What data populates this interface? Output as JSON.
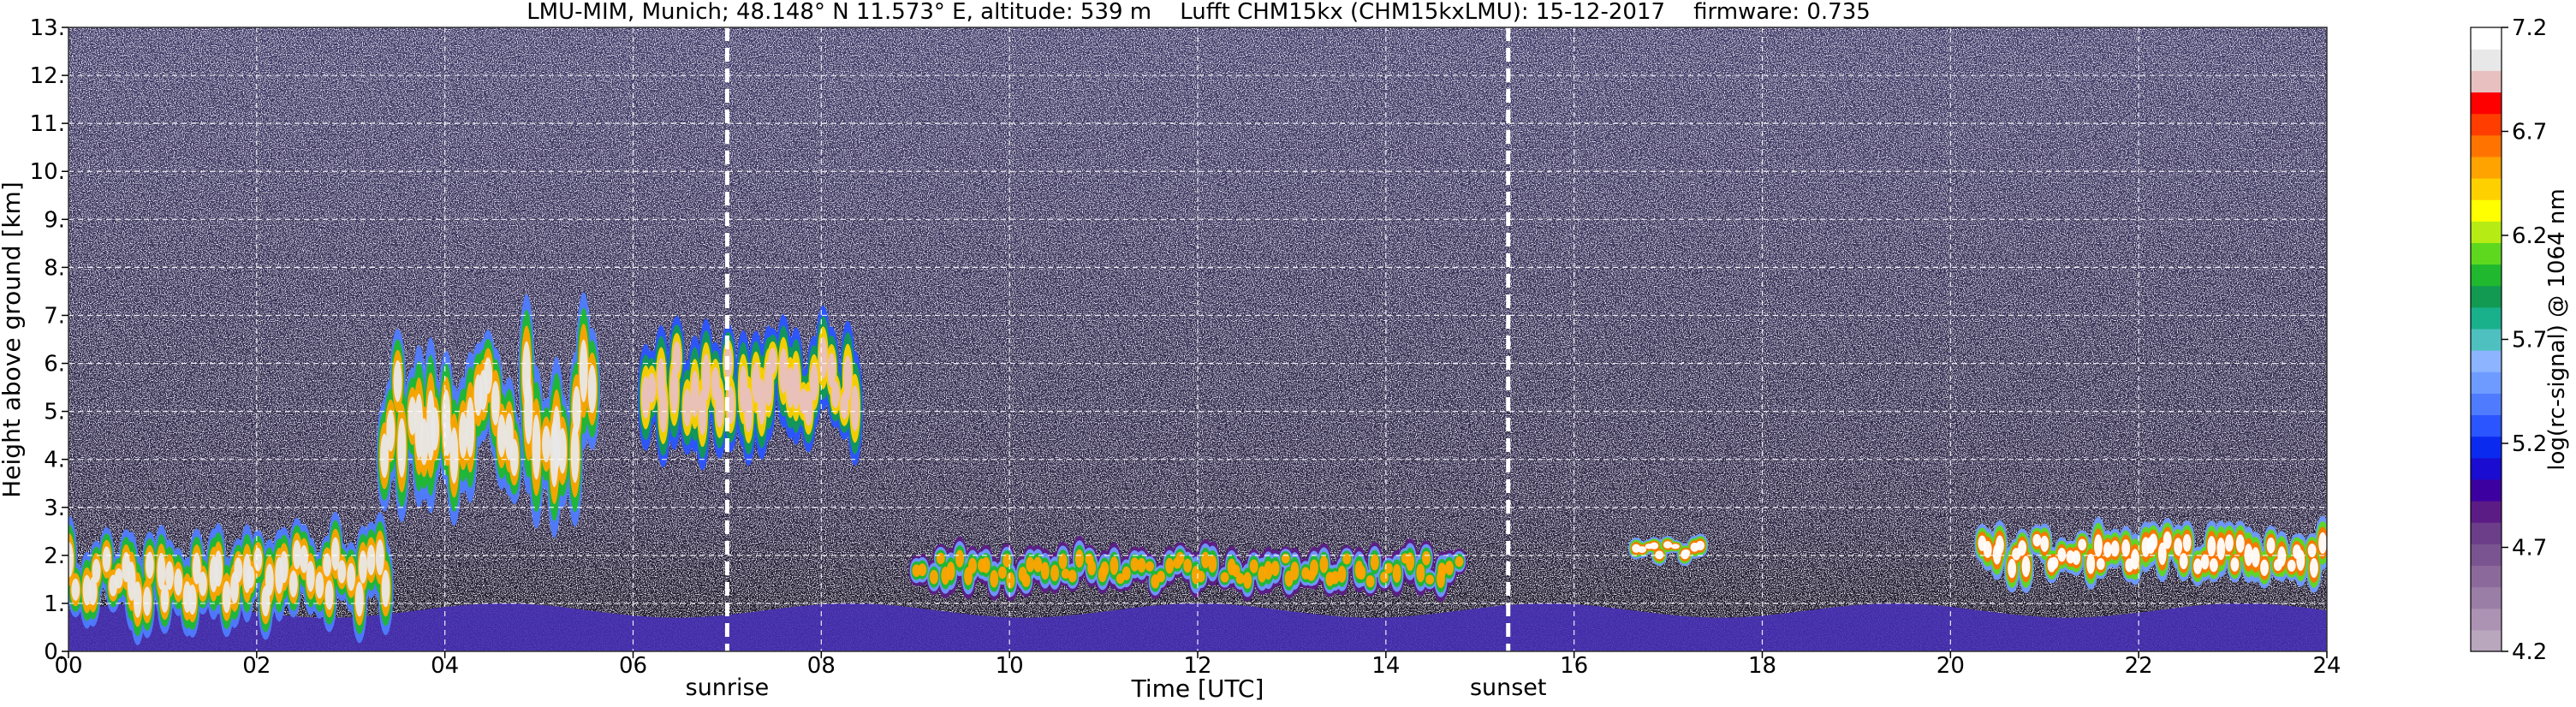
{
  "chart_data": {
    "type": "heatmap",
    "title": "LMU-MIM, Munich; 48.148° N 11.573° E, altitude: 539 m    Lufft CHM15kx (CHM15kxLMU): 15-12-2017    firmware: 0.735",
    "xlabel": "Time [UTC]",
    "ylabel": "Height above ground [km]",
    "xlim": [
      0,
      24
    ],
    "ylim": [
      0,
      13
    ],
    "x_ticks": [
      0,
      2,
      4,
      6,
      8,
      10,
      12,
      14,
      16,
      18,
      20,
      22,
      24
    ],
    "x_tick_labels": [
      "00",
      "02",
      "04",
      "06",
      "08",
      "10",
      "12",
      "14",
      "16",
      "18",
      "20",
      "22",
      "24"
    ],
    "y_ticks": [
      0,
      1,
      2,
      3,
      4,
      5,
      6,
      7,
      8,
      9,
      10,
      11,
      12,
      13
    ],
    "y_tick_labels": [
      "0.",
      "1.",
      "2.",
      "3.",
      "4.",
      "5.",
      "6.",
      "7.",
      "8.",
      "9.",
      "10.",
      "11.",
      "12.",
      "13."
    ],
    "grid": true,
    "colorbar": {
      "label": "log(rc-signal) @ 1064 nm",
      "range": [
        4.2,
        7.2
      ],
      "ticks": [
        4.2,
        4.7,
        5.2,
        5.7,
        6.2,
        6.7,
        7.2
      ],
      "tick_labels": [
        "4.2",
        "4.7",
        "5.2",
        "5.7",
        "6.2",
        "6.7",
        "7.2"
      ],
      "colors": [
        "#b9a7be",
        "#ac93b3",
        "#9a7ea6",
        "#8b6a9b",
        "#7a5490",
        "#6c3e89",
        "#5c1c86",
        "#3d00a0",
        "#1a0cd0",
        "#0b2af0",
        "#2a55ff",
        "#4f7cff",
        "#6e9bff",
        "#8cb4ff",
        "#4fc0c0",
        "#19b08c",
        "#129a52",
        "#1fb82e",
        "#5ed81e",
        "#b6ec14",
        "#ffff00",
        "#ffd000",
        "#ffa300",
        "#ff7400",
        "#ff3d00",
        "#ff0000",
        "#e8c0c0",
        "#e8e8e8",
        "#ffffff"
      ]
    },
    "events": [
      {
        "name": "sunrise",
        "time": 7.0
      },
      {
        "name": "sunset",
        "time": 15.3
      }
    ],
    "features": [
      {
        "kind": "boundary_layer_aerosol",
        "time_range": [
          0,
          24
        ],
        "height_top_km": 1.0,
        "level": 4.9
      },
      {
        "kind": "low_cloud",
        "time_range": [
          0.0,
          3.4
        ],
        "height_range_km": [
          0.3,
          2.4
        ],
        "level": 7.0
      },
      {
        "kind": "mid_cloud",
        "time_range": [
          3.3,
          5.6
        ],
        "height_range_km": [
          2.7,
          6.4
        ],
        "level": 7.0
      },
      {
        "kind": "mid_cloud",
        "time_range": [
          6.1,
          8.4
        ],
        "height_range_km": [
          4.1,
          6.6
        ],
        "level": 6.9
      },
      {
        "kind": "cloud_fragments",
        "time_range": [
          9.0,
          14.8
        ],
        "height_range_km": [
          1.1,
          2.1
        ],
        "level": 6.5
      },
      {
        "kind": "cloud_patch",
        "time_range": [
          16.6,
          17.4
        ],
        "height_range_km": [
          1.8,
          2.3
        ],
        "level": 7.1
      },
      {
        "kind": "cloud_layer",
        "time_range": [
          20.3,
          24.0
        ],
        "height_range_km": [
          1.3,
          2.5
        ],
        "level": 7.1
      }
    ]
  }
}
